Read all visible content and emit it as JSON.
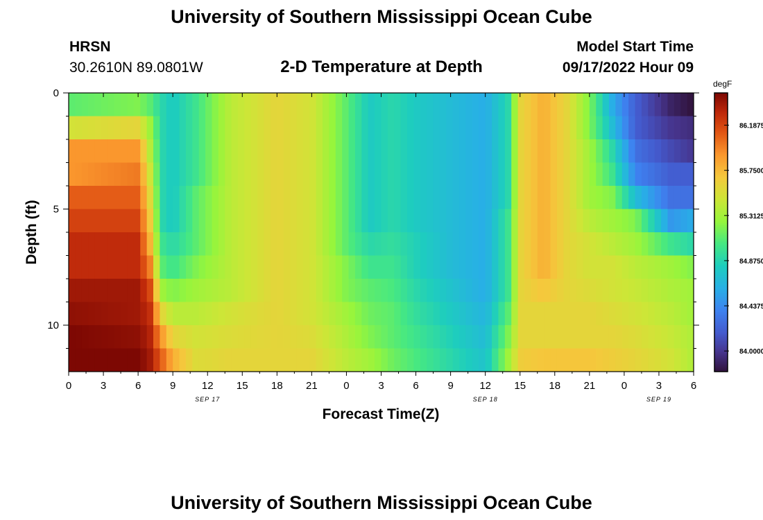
{
  "header": {
    "title": "University of Southern Mississippi Ocean Cube",
    "station": "HRSN",
    "coords": "30.2610N  89.0801W",
    "subtitle": "2-D Temperature at Depth",
    "model_label": "Model Start Time",
    "model_time": "09/17/2022 Hour 09"
  },
  "footer": {
    "title": "University of Southern Mississippi Ocean Cube"
  },
  "chart_data": {
    "type": "heatmap",
    "title": "2-D Temperature at Depth",
    "xlabel": "Forecast Time(Z)",
    "ylabel": "Depth (ft)",
    "x_ticks": [
      "0",
      "3",
      "6",
      "9",
      "12",
      "15",
      "18",
      "21",
      "0",
      "3",
      "6",
      "9",
      "12",
      "15",
      "18",
      "21",
      "0",
      "3",
      "6"
    ],
    "x_range_hours": [
      0,
      54
    ],
    "date_labels": [
      {
        "label": "SEP 17",
        "hour": 12
      },
      {
        "label": "SEP 18",
        "hour": 36
      },
      {
        "label": "SEP 19",
        "hour": 51
      }
    ],
    "y_ticks": [
      "0",
      "5",
      "10"
    ],
    "y_range_ft": [
      0,
      12
    ],
    "colorbar": {
      "unit": "degF",
      "min": 83.8,
      "max": 86.5,
      "tick_labels": [
        "86.1875",
        "85.7500",
        "85.3125",
        "84.8750",
        "84.4375",
        "84.0000"
      ],
      "tick_values": [
        86.1875,
        85.75,
        85.3125,
        84.875,
        84.4375,
        84.0
      ]
    },
    "depth_levels_ft": [
      0.5,
      1.5,
      2.5,
      3.5,
      4.5,
      5.5,
      6.5,
      7.5,
      8.5,
      9.5,
      10.5,
      11.5
    ],
    "time_keyframes_hours": [
      0,
      6,
      7,
      8,
      9,
      11,
      14,
      18,
      21,
      24,
      26,
      28,
      30,
      33,
      36,
      38,
      39,
      41,
      43,
      45,
      47,
      49,
      52,
      54
    ],
    "values": [
      [
        85.1,
        85.2,
        85.1,
        84.9,
        84.8,
        85.0,
        85.4,
        85.6,
        85.5,
        85.1,
        84.8,
        84.9,
        84.8,
        84.7,
        84.6,
        84.9,
        85.6,
        85.8,
        85.6,
        85.2,
        84.6,
        84.2,
        83.9,
        83.8
      ],
      [
        85.5,
        85.6,
        85.3,
        84.9,
        84.8,
        85.0,
        85.4,
        85.6,
        85.5,
        85.1,
        84.8,
        84.9,
        84.8,
        84.7,
        84.6,
        84.9,
        85.6,
        85.8,
        85.6,
        85.2,
        84.7,
        84.2,
        84.0,
        83.95
      ],
      [
        85.9,
        85.9,
        85.4,
        84.9,
        84.8,
        85.0,
        85.4,
        85.6,
        85.5,
        85.1,
        84.8,
        84.9,
        84.8,
        84.7,
        84.6,
        84.9,
        85.6,
        85.8,
        85.6,
        85.3,
        84.9,
        84.3,
        84.1,
        84.0
      ],
      [
        85.9,
        86.0,
        85.5,
        84.9,
        84.8,
        85.0,
        85.4,
        85.6,
        85.5,
        85.1,
        84.8,
        84.9,
        84.8,
        84.7,
        84.6,
        84.9,
        85.6,
        85.8,
        85.6,
        85.3,
        85.0,
        84.4,
        84.2,
        84.2
      ],
      [
        86.1,
        86.1,
        85.6,
        84.9,
        84.8,
        85.1,
        85.4,
        85.6,
        85.5,
        85.1,
        84.8,
        84.9,
        84.8,
        84.7,
        84.6,
        84.9,
        85.6,
        85.8,
        85.6,
        85.3,
        85.2,
        84.7,
        84.3,
        84.3
      ],
      [
        86.2,
        86.2,
        85.7,
        84.9,
        84.8,
        85.1,
        85.4,
        85.6,
        85.5,
        85.1,
        84.8,
        84.9,
        84.8,
        84.7,
        84.6,
        85.0,
        85.6,
        85.8,
        85.6,
        85.4,
        85.3,
        85.2,
        84.5,
        84.6
      ],
      [
        86.3,
        86.3,
        85.8,
        85.0,
        84.9,
        85.1,
        85.4,
        85.6,
        85.5,
        85.1,
        84.9,
        84.95,
        84.85,
        84.7,
        84.6,
        85.0,
        85.6,
        85.8,
        85.6,
        85.5,
        85.4,
        85.3,
        85.0,
        84.9
      ],
      [
        86.3,
        86.3,
        86.0,
        85.1,
        85.0,
        85.2,
        85.4,
        85.6,
        85.5,
        85.2,
        85.0,
        85.0,
        84.85,
        84.7,
        84.6,
        85.0,
        85.6,
        85.8,
        85.6,
        85.5,
        85.5,
        85.4,
        85.3,
        85.2
      ],
      [
        86.4,
        86.4,
        86.2,
        85.3,
        85.2,
        85.3,
        85.4,
        85.6,
        85.5,
        85.2,
        85.1,
        85.05,
        84.9,
        84.75,
        84.6,
        85.0,
        85.6,
        85.7,
        85.6,
        85.55,
        85.5,
        85.45,
        85.35,
        85.3
      ],
      [
        86.45,
        86.4,
        86.3,
        85.6,
        85.4,
        85.4,
        85.5,
        85.6,
        85.5,
        85.3,
        85.15,
        85.1,
        84.95,
        84.8,
        84.65,
        85.1,
        85.6,
        85.6,
        85.6,
        85.6,
        85.55,
        85.5,
        85.4,
        85.3
      ],
      [
        86.5,
        86.45,
        86.35,
        85.9,
        85.6,
        85.5,
        85.55,
        85.6,
        85.55,
        85.35,
        85.2,
        85.1,
        85.0,
        84.85,
        84.7,
        85.2,
        85.6,
        85.6,
        85.6,
        85.6,
        85.6,
        85.55,
        85.45,
        85.35
      ],
      [
        86.5,
        86.5,
        86.4,
        86.1,
        85.8,
        85.55,
        85.6,
        85.6,
        85.6,
        85.4,
        85.3,
        85.15,
        85.05,
        84.9,
        84.75,
        85.3,
        85.65,
        85.7,
        85.7,
        85.7,
        85.65,
        85.6,
        85.5,
        85.35
      ]
    ]
  }
}
